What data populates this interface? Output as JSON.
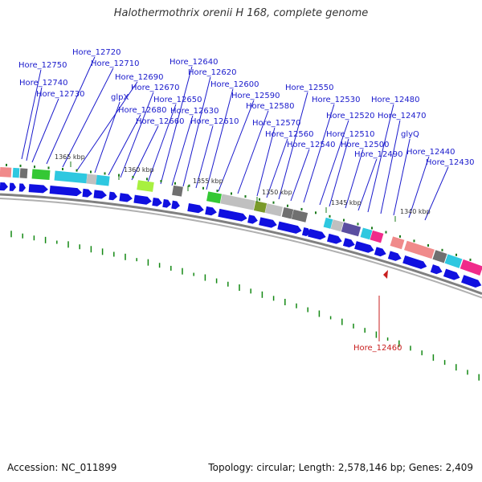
{
  "title": "Halothermothrix orenii H 168, complete genome",
  "accession_text": "Accession: NC_011899",
  "summary_text": "Topology: circular; Length: 2,578,146 bp; Genes: 2,409",
  "colors": {
    "label": "#1a1acc",
    "highlight": "#c81e1e",
    "gene_arrow": "#1010e0",
    "backbone": "#808080",
    "gc_tick": "#138813"
  },
  "position_ticks": [
    "1365 kbp",
    "1360 kbp",
    "1355 kbp",
    "1350 kbp",
    "1345 kbp",
    "1340 kbp"
  ],
  "gene_labels": [
    "Hore_12750",
    "Hore_12740",
    "Hore_12730",
    "Hore_12720",
    "Hore_12710",
    "Hore_12690",
    "glpX",
    "Hore_12680",
    "Hore_12670",
    "Hore_12660",
    "Hore_12650",
    "Hore_12640",
    "Hore_12630",
    "Hore_12620",
    "Hore_12610",
    "Hore_12600",
    "Hore_12590",
    "Hore_12580",
    "Hore_12570",
    "Hore_12560",
    "Hore_12550",
    "Hore_12540",
    "Hore_12530",
    "Hore_12520",
    "Hore_12510",
    "Hore_12500",
    "Hore_12490",
    "Hore_12480",
    "Hore_12470",
    "glyQ",
    "Hore_12440",
    "Hore_12430"
  ],
  "highlighted_gene": "Hore_12460"
}
